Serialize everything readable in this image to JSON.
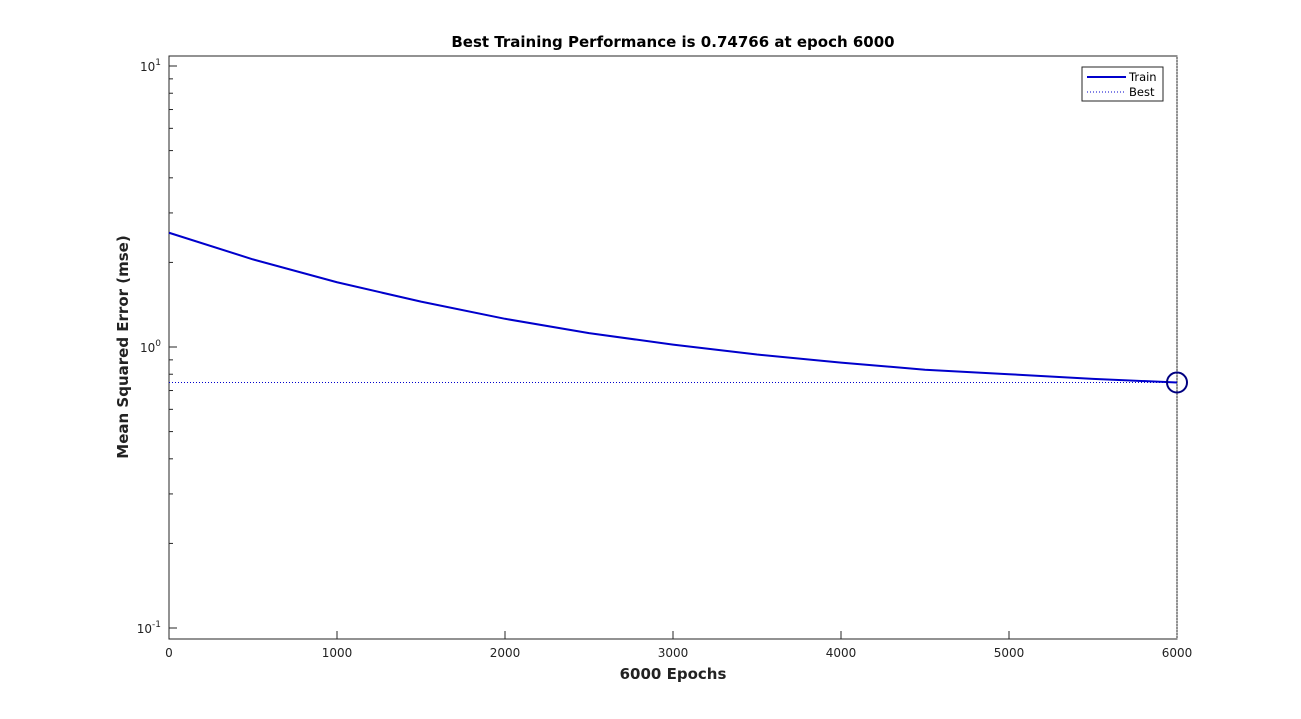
{
  "chart_data": {
    "type": "line",
    "title": "Best Training Performance is 0.74766 at epoch 6000",
    "xlabel": "6000 Epochs",
    "ylabel": "Mean Squared Error  (mse)",
    "xlim": [
      0,
      6000
    ],
    "ylim": [
      0.1,
      10
    ],
    "yscale": "log",
    "x_ticks": [
      0,
      1000,
      2000,
      3000,
      4000,
      5000,
      6000
    ],
    "x_tick_labels": [
      "0",
      "1000",
      "2000",
      "3000",
      "4000",
      "5000",
      "6000"
    ],
    "y_ticks": [
      {
        "value": 0.1,
        "base": "10",
        "exp": "-1"
      },
      {
        "value": 1,
        "base": "10",
        "exp": "0"
      },
      {
        "value": 10,
        "base": "10",
        "exp": "1"
      }
    ],
    "grid": false,
    "legend_position": "top-right",
    "series": [
      {
        "name": "Train",
        "color": "#0000cc",
        "style": "solid",
        "x": [
          0,
          500,
          1000,
          1500,
          2000,
          2500,
          3000,
          3500,
          4000,
          4500,
          5000,
          5500,
          6000
        ],
        "y": [
          2.55,
          2.05,
          1.7,
          1.45,
          1.26,
          1.12,
          1.02,
          0.94,
          0.88,
          0.83,
          0.8,
          0.77,
          0.74766
        ]
      },
      {
        "name": "Best",
        "color": "#0000cc",
        "style": "dotted",
        "x": [
          0,
          6000
        ],
        "y": [
          0.74766,
          0.74766
        ]
      }
    ],
    "best_marker": {
      "x": 6000,
      "y": 0.74766,
      "color": "#000080"
    },
    "best_epoch_line": {
      "x": 6000,
      "color": "#888888"
    }
  }
}
